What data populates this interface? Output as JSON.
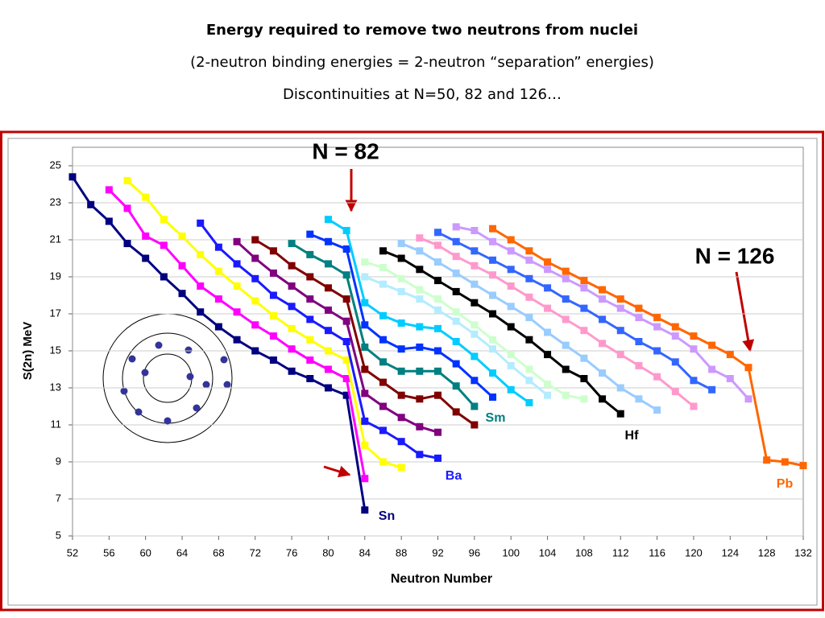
{
  "chart_data": {
    "type": "line",
    "title": "Energy required to remove two neutrons from nuclei",
    "subtitle": "(2-neutron binding energies = 2-neutron “separation” energies)",
    "subtitle2": "Discontinuities at N=50, 82 and 126…",
    "xlabel": "Neutron Number",
    "ylabel": "S(2n) MeV",
    "xlim": [
      52,
      132
    ],
    "xticks": [
      52,
      56,
      60,
      64,
      68,
      72,
      76,
      80,
      84,
      88,
      92,
      96,
      100,
      104,
      108,
      112,
      116,
      120,
      124,
      128,
      132
    ],
    "ylim": [
      5,
      26
    ],
    "yticks": [
      5,
      7,
      9,
      11,
      13,
      15,
      17,
      19,
      21,
      23,
      25
    ],
    "grid": true,
    "annotations": [
      "N = 82",
      "N = 126"
    ],
    "series": [
      {
        "name": "Sn",
        "color": "#000080",
        "x": [
          52,
          54,
          56,
          58,
          60,
          62,
          64,
          66,
          68,
          70,
          72,
          74,
          76,
          78,
          80,
          82,
          84
        ],
        "values": [
          24.4,
          22.9,
          22.0,
          20.8,
          20.0,
          19.0,
          18.1,
          17.1,
          16.3,
          15.6,
          15.0,
          14.5,
          13.9,
          13.5,
          13.0,
          12.6,
          6.4
        ]
      },
      {
        "color": "#ff00ff",
        "x": [
          56,
          58,
          60,
          62,
          64,
          66,
          68,
          70,
          72,
          74,
          76,
          78,
          80,
          82,
          84
        ],
        "values": [
          23.7,
          22.7,
          21.2,
          20.7,
          19.6,
          18.5,
          17.8,
          17.1,
          16.4,
          15.8,
          15.1,
          14.5,
          14.0,
          13.5,
          8.1
        ]
      },
      {
        "color": "#ffff00",
        "x": [
          58,
          60,
          62,
          64,
          66,
          68,
          70,
          72,
          74,
          76,
          78,
          80,
          82,
          84,
          86,
          88
        ],
        "values": [
          24.2,
          23.3,
          22.1,
          21.2,
          20.2,
          19.3,
          18.5,
          17.7,
          16.9,
          16.2,
          15.6,
          15.0,
          14.5,
          9.9,
          9.0,
          8.7
        ]
      },
      {
        "name": "Ba",
        "color": "#1a1aff",
        "x": [
          66,
          68,
          70,
          72,
          74,
          76,
          78,
          80,
          82,
          84,
          86,
          88,
          90,
          92
        ],
        "values": [
          21.9,
          20.6,
          19.7,
          18.9,
          18.0,
          17.4,
          16.7,
          16.1,
          15.5,
          11.2,
          10.7,
          10.1,
          9.4,
          9.2
        ]
      },
      {
        "color": "#800080",
        "x": [
          70,
          72,
          74,
          76,
          78,
          80,
          82,
          84,
          86,
          88,
          90,
          92
        ],
        "values": [
          20.9,
          20.0,
          19.2,
          18.5,
          17.8,
          17.2,
          16.6,
          12.7,
          12.0,
          11.4,
          10.9,
          10.6
        ]
      },
      {
        "color": "#800000",
        "x": [
          72,
          74,
          76,
          78,
          80,
          82,
          84,
          86,
          88,
          90,
          92,
          94,
          96
        ],
        "values": [
          21.0,
          20.4,
          19.6,
          19.0,
          18.4,
          17.8,
          14.0,
          13.3,
          12.6,
          12.4,
          12.6,
          11.7,
          11.0
        ]
      },
      {
        "name": "Sm",
        "color": "#008080",
        "x": [
          76,
          78,
          80,
          82,
          84,
          86,
          88,
          90,
          92,
          94,
          96
        ],
        "values": [
          20.8,
          20.2,
          19.7,
          19.1,
          15.2,
          14.4,
          13.9,
          13.9,
          13.9,
          13.1,
          12.0
        ]
      },
      {
        "color": "#0033ff",
        "x": [
          78,
          80,
          82,
          84,
          86,
          88,
          90,
          92,
          94,
          96,
          98
        ],
        "values": [
          21.3,
          20.9,
          20.5,
          16.4,
          15.6,
          15.1,
          15.2,
          15.0,
          14.3,
          13.4,
          12.5
        ]
      },
      {
        "color": "#00ccff",
        "x": [
          80,
          82,
          84,
          86,
          88,
          90,
          92,
          94,
          96,
          98,
          100,
          102
        ],
        "values": [
          22.1,
          21.5,
          17.6,
          16.9,
          16.5,
          16.3,
          16.2,
          15.5,
          14.7,
          13.8,
          12.9,
          12.2
        ]
      },
      {
        "color": "#ccffcc",
        "x": [
          84,
          86,
          88,
          90,
          92,
          94,
          96,
          98,
          100,
          102,
          104,
          106,
          108
        ],
        "values": [
          19.8,
          19.5,
          18.9,
          18.3,
          17.8,
          17.1,
          16.4,
          15.6,
          14.8,
          14.0,
          13.2,
          12.6,
          12.4
        ]
      },
      {
        "color": "#b3ecff",
        "x": [
          84,
          86,
          88,
          90,
          92,
          94,
          96,
          98,
          100,
          102,
          104
        ],
        "values": [
          19.0,
          18.6,
          18.2,
          17.8,
          17.2,
          16.6,
          15.9,
          15.1,
          14.2,
          13.4,
          12.6
        ]
      },
      {
        "color": "#99ccff",
        "x": [
          88,
          90,
          92,
          94,
          96,
          98,
          100,
          102,
          104,
          106,
          108,
          110,
          112,
          114,
          116
        ],
        "values": [
          20.8,
          20.4,
          19.8,
          19.2,
          18.6,
          18.0,
          17.4,
          16.8,
          16.0,
          15.3,
          14.6,
          13.8,
          13.0,
          12.4,
          11.8
        ]
      },
      {
        "name": "Hf",
        "color": "#000000",
        "x": [
          86,
          88,
          90,
          92,
          94,
          96,
          98,
          100,
          102,
          104,
          106,
          108,
          110,
          112
        ],
        "values": [
          20.4,
          20.0,
          19.4,
          18.8,
          18.2,
          17.6,
          17.0,
          16.3,
          15.6,
          14.8,
          14.0,
          13.5,
          12.4,
          11.6
        ]
      },
      {
        "color": "#ff99cc",
        "x": [
          90,
          92,
          94,
          96,
          98,
          100,
          102,
          104,
          106,
          108,
          110,
          112,
          114,
          116,
          118,
          120
        ],
        "values": [
          21.1,
          20.7,
          20.1,
          19.6,
          19.1,
          18.5,
          17.9,
          17.3,
          16.7,
          16.1,
          15.4,
          14.8,
          14.2,
          13.6,
          12.8,
          12.0
        ]
      },
      {
        "color": "#3366ff",
        "x": [
          92,
          94,
          96,
          98,
          100,
          102,
          104,
          106,
          108,
          110,
          112,
          114,
          116,
          118,
          120,
          122
        ],
        "values": [
          21.4,
          20.9,
          20.4,
          19.9,
          19.4,
          18.9,
          18.4,
          17.8,
          17.3,
          16.7,
          16.1,
          15.5,
          15.0,
          14.4,
          13.4,
          12.9
        ]
      },
      {
        "color": "#cc99ff",
        "x": [
          94,
          96,
          98,
          100,
          102,
          104,
          106,
          108,
          110,
          112,
          114,
          116,
          118,
          120,
          122,
          124,
          126
        ],
        "values": [
          21.7,
          21.5,
          20.9,
          20.4,
          19.9,
          19.4,
          18.9,
          18.4,
          17.8,
          17.3,
          16.8,
          16.3,
          15.8,
          15.1,
          14.0,
          13.5,
          12.4
        ]
      },
      {
        "name": "Pb",
        "color": "#ff6600",
        "x": [
          98,
          100,
          102,
          104,
          106,
          108,
          110,
          112,
          114,
          116,
          118,
          120,
          122,
          124,
          126,
          128,
          130,
          132
        ],
        "values": [
          21.6,
          21.0,
          20.4,
          19.8,
          19.3,
          18.8,
          18.3,
          17.8,
          17.3,
          16.8,
          16.3,
          15.8,
          15.3,
          14.8,
          14.1,
          9.1,
          9.0,
          8.8
        ]
      }
    ]
  }
}
